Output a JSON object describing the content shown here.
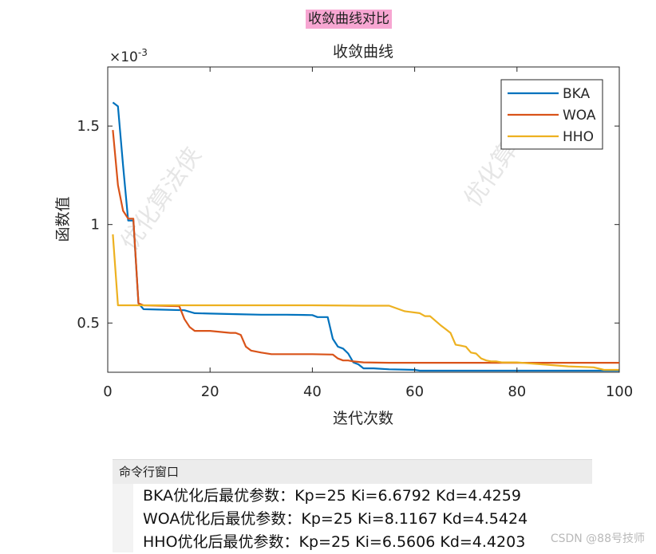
{
  "heading": "收敛曲线对比",
  "chart_data": {
    "type": "line",
    "title": "收敛曲线",
    "xlabel": "迭代次数",
    "ylabel": "函数值",
    "y_exponent_label": "×10",
    "y_exponent": "-3",
    "xlim": [
      0,
      100
    ],
    "ylim": [
      0.00025,
      0.0018
    ],
    "xticks": [
      0,
      20,
      40,
      60,
      80,
      100
    ],
    "xtick_labels": [
      "0",
      "20",
      "40",
      "60",
      "80",
      "100"
    ],
    "yticks": [
      0.0005,
      0.001,
      0.0015
    ],
    "ytick_labels": [
      "0.5",
      "1",
      "1.5"
    ],
    "grid": false,
    "legend_position": "top-right",
    "watermark": "优化算法侠",
    "series": [
      {
        "name": "BKA",
        "color": "#0072BD",
        "x": [
          1,
          2,
          3,
          4,
          5,
          6,
          7,
          10,
          15,
          17,
          20,
          25,
          30,
          35,
          40,
          41,
          42,
          43,
          44,
          45,
          46,
          47,
          48,
          49,
          50,
          52,
          55,
          60,
          61,
          70,
          80,
          90,
          100
        ],
        "y": [
          0.00162,
          0.0016,
          0.0013,
          0.00102,
          0.00102,
          0.0006,
          0.00057,
          0.000568,
          0.000565,
          0.00055,
          0.000548,
          0.000545,
          0.000542,
          0.000542,
          0.00054,
          0.00053,
          0.00053,
          0.00053,
          0.00042,
          0.00038,
          0.00037,
          0.000345,
          0.0003,
          0.00029,
          0.00027,
          0.00027,
          0.000265,
          0.000262,
          0.000258,
          0.000258,
          0.000258,
          0.000258,
          0.000258
        ]
      },
      {
        "name": "WOA",
        "color": "#D95319",
        "x": [
          1,
          2,
          3,
          4,
          5,
          6,
          7,
          10,
          14,
          15,
          16,
          17,
          20,
          24,
          25,
          26,
          27,
          28,
          30,
          32,
          35,
          40,
          44,
          45,
          46,
          47,
          48,
          50,
          55,
          60,
          70,
          80,
          90,
          100
        ],
        "y": [
          0.00148,
          0.0012,
          0.00107,
          0.00103,
          0.00103,
          0.0006,
          0.00059,
          0.000588,
          0.000585,
          0.00052,
          0.00048,
          0.00046,
          0.00046,
          0.00045,
          0.00045,
          0.00044,
          0.00038,
          0.00036,
          0.00035,
          0.000342,
          0.000342,
          0.000342,
          0.00034,
          0.00032,
          0.00031,
          0.00031,
          0.000305,
          0.0003,
          0.000298,
          0.000298,
          0.000298,
          0.000298,
          0.000298,
          0.000298
        ]
      },
      {
        "name": "HHO",
        "color": "#EDB120",
        "x": [
          1,
          2,
          5,
          10,
          20,
          30,
          40,
          50,
          55,
          58,
          61,
          62,
          63,
          65,
          66,
          67,
          68,
          69,
          70,
          71,
          72,
          73,
          74,
          75,
          76,
          77,
          80,
          85,
          90,
          95,
          97,
          100
        ],
        "y": [
          0.00095,
          0.00059,
          0.00059,
          0.00059,
          0.00059,
          0.00059,
          0.00059,
          0.000588,
          0.000588,
          0.00056,
          0.00055,
          0.000535,
          0.000535,
          0.00049,
          0.00047,
          0.00045,
          0.00039,
          0.000385,
          0.00038,
          0.00035,
          0.000345,
          0.00032,
          0.00031,
          0.000305,
          0.000305,
          0.0003,
          0.0003,
          0.00029,
          0.00028,
          0.000275,
          0.000262,
          0.000262
        ]
      }
    ]
  },
  "command_window": {
    "title": "命令行窗口",
    "lines": [
      "BKA优化后最优参数：Kp=25 Ki=6.6792 Kd=4.4259",
      "WOA优化后最优参数：Kp=25 Ki=8.1167 Kd=4.5424",
      "HHO优化后最优参数：Kp=25 Ki=6.5606 Kd=4.4203"
    ]
  },
  "credit": "CSDN @88号技师"
}
